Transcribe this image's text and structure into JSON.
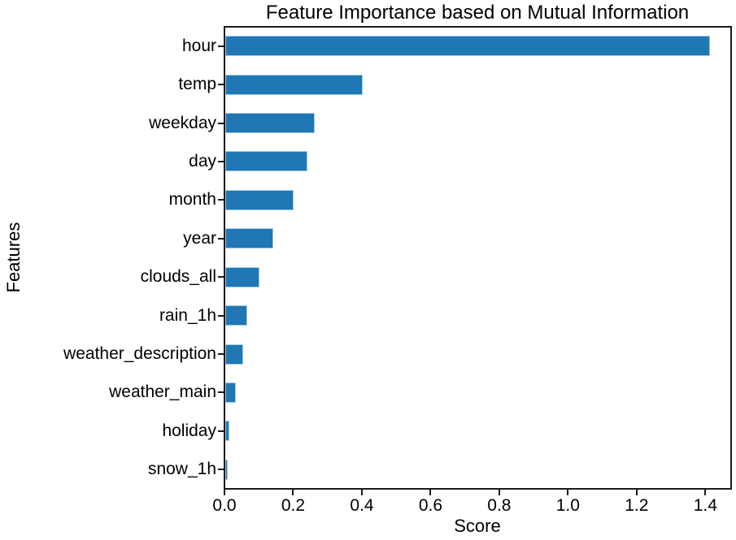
{
  "chart_data": {
    "type": "bar",
    "orientation": "horizontal",
    "title": "Feature Importance based on Mutual Information",
    "xlabel": "Score",
    "ylabel": "Features",
    "categories": [
      "hour",
      "temp",
      "weekday",
      "day",
      "month",
      "year",
      "clouds_all",
      "rain_1h",
      "weather_description",
      "weather_main",
      "holiday",
      "snow_1h"
    ],
    "values": [
      1.41,
      0.4,
      0.26,
      0.24,
      0.2,
      0.14,
      0.1,
      0.063,
      0.052,
      0.03,
      0.013,
      0.006
    ],
    "xlim": [
      0,
      1.475
    ],
    "xticks": [
      0.0,
      0.2,
      0.4,
      0.6,
      0.8,
      1.0,
      1.2,
      1.4
    ],
    "xtick_labels": [
      "0.0",
      "0.2",
      "0.4",
      "0.6",
      "0.8",
      "1.0",
      "1.2",
      "1.4"
    ],
    "bar_color": "#1f77b4",
    "bar_edge_color": "#a3cbe5",
    "axis_color": "#1a1a1a",
    "grid": false,
    "legend_position": "none"
  }
}
